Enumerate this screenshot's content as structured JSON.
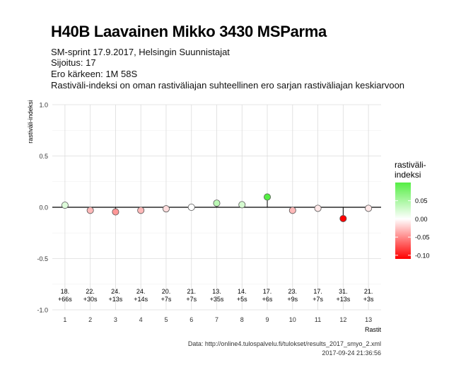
{
  "header": {
    "title": "H40B Laavainen Mikko 3430 MSParma",
    "subtitle_lines": [
      "SM-sprint 17.9.2017, Helsingin Suunnistajat",
      "Sijoitus: 17",
      "Ero kärkeen: 1M 58S",
      "Rastiväli-indeksi on oman rastiväliajan suhteellinen ero sarjan rastiväliajan keskiarvoon"
    ]
  },
  "caption": {
    "source": "Data: http://online4.tulospalvelu.fi/tulokset/results_2017_smyo_2.xml",
    "timestamp": "2017-09-24 21:36:56"
  },
  "chart_data": {
    "type": "scatter",
    "x": [
      1,
      2,
      3,
      4,
      5,
      6,
      7,
      8,
      9,
      10,
      11,
      12,
      13
    ],
    "y": [
      0.02,
      -0.03,
      -0.045,
      -0.03,
      -0.015,
      0.0,
      0.04,
      0.025,
      0.1,
      -0.03,
      -0.01,
      -0.11,
      -0.01
    ],
    "point_labels": [
      [
        "18.",
        "+66s"
      ],
      [
        "22.",
        "+30s"
      ],
      [
        "24.",
        "+13s"
      ],
      [
        "24.",
        "+14s"
      ],
      [
        "20.",
        "+7s"
      ],
      [
        "21.",
        "+7s"
      ],
      [
        "13.",
        "+35s"
      ],
      [
        "14.",
        "+5s"
      ],
      [
        "17.",
        "+6s"
      ],
      [
        "23.",
        "+9s"
      ],
      [
        "17.",
        "+7s"
      ],
      [
        "31.",
        "+13s"
      ],
      [
        "21.",
        "+3s"
      ]
    ],
    "xlabel": "Rastit",
    "ylabel": "rastiväli-indeksi",
    "xlim": [
      0.5,
      13.5
    ],
    "ylim": [
      -1.0,
      1.0
    ],
    "xticks": [
      "1",
      "2",
      "3",
      "4",
      "5",
      "6",
      "7",
      "8",
      "9",
      "10",
      "11",
      "12",
      "13"
    ],
    "yticks": [
      "-1.0",
      "-0.5",
      "0.0",
      "0.5",
      "1.0"
    ],
    "grid": true,
    "legend": {
      "title_lines": [
        "rastiväli-",
        "indeksi"
      ],
      "ticks": [
        "0.05",
        "0.00",
        "-0.05",
        "-0.10"
      ],
      "tick_values": [
        0.05,
        0.0,
        -0.05,
        -0.1
      ],
      "range": [
        -0.11,
        0.1
      ],
      "colors": {
        "low": "#ff0000",
        "mid": "#ffffff",
        "high": "#55ee44"
      },
      "placement": "right"
    }
  }
}
